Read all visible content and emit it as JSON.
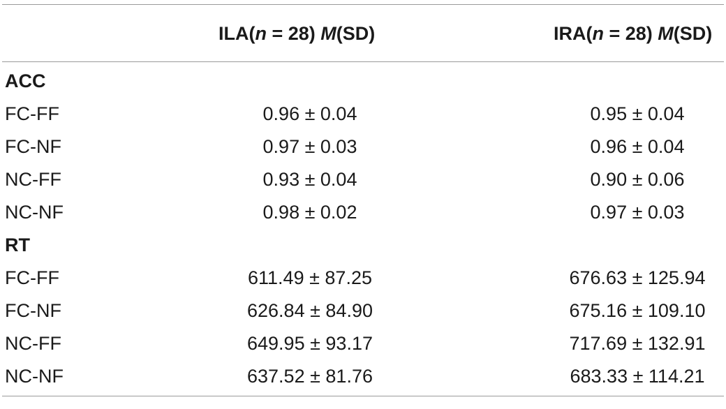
{
  "table": {
    "header": {
      "col1_prefix": "ILA(",
      "col1_n": "n",
      "col1_mid": " = 28) ",
      "col1_m": "M",
      "col1_suffix": "(SD)",
      "col2_prefix": "IRA(",
      "col2_n": "n",
      "col2_mid": " = 28) ",
      "col2_m": "M",
      "col2_suffix": "(SD)"
    },
    "sections": [
      {
        "title": "ACC",
        "rows": [
          {
            "label": "FC-FF",
            "ila": "0.96 ± 0.04",
            "ira": "0.95 ± 0.04"
          },
          {
            "label": "FC-NF",
            "ila": "0.97 ± 0.03",
            "ira": "0.96 ± 0.04"
          },
          {
            "label": "NC-FF",
            "ila": "0.93 ± 0.04",
            "ira": "0.90 ± 0.06"
          },
          {
            "label": "NC-NF",
            "ila": "0.98 ± 0.02",
            "ira": "0.97 ± 0.03"
          }
        ]
      },
      {
        "title": "RT",
        "rows": [
          {
            "label": "FC-FF",
            "ila": "611.49 ± 87.25",
            "ira": "676.63 ± 125.94"
          },
          {
            "label": "FC-NF",
            "ila": "626.84 ± 84.90",
            "ira": "675.16 ± 109.10"
          },
          {
            "label": "NC-FF",
            "ila": "649.95 ± 93.17",
            "ira": "717.69 ± 132.91"
          },
          {
            "label": "NC-NF",
            "ila": "637.52 ± 81.76",
            "ira": "683.33 ± 114.21"
          }
        ]
      }
    ]
  }
}
